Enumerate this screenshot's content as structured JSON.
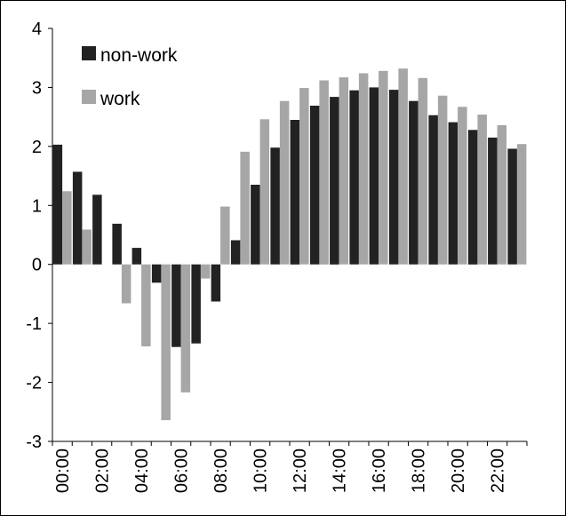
{
  "chart_data": {
    "type": "bar",
    "title": "",
    "xlabel": "",
    "ylabel": "",
    "ylim": [
      -3,
      4
    ],
    "yticks": [
      "-3",
      "-2",
      "-1",
      "0",
      "1",
      "2",
      "3",
      "4"
    ],
    "grid": false,
    "legend_position": "top-left",
    "categories": [
      "00:00",
      "01:00",
      "02:00",
      "03:00",
      "04:00",
      "05:00",
      "06:00",
      "07:00",
      "08:00",
      "09:00",
      "10:00",
      "11:00",
      "12:00",
      "13:00",
      "14:00",
      "15:00",
      "16:00",
      "17:00",
      "18:00",
      "19:00",
      "20:00",
      "21:00",
      "22:00",
      "23:00"
    ],
    "x_tick_labels": [
      "00:00",
      "",
      "02:00",
      "",
      "04:00",
      "",
      "06:00",
      "",
      "08:00",
      "",
      "10:00",
      "",
      "12:00",
      "",
      "14:00",
      "",
      "16:00",
      "",
      "18:00",
      "",
      "20:00",
      "",
      "22:00",
      ""
    ],
    "series": [
      {
        "name": "non-work",
        "color": "#222222",
        "values": [
          2.03,
          1.57,
          1.18,
          0.69,
          0.28,
          -0.31,
          -1.4,
          -1.34,
          -0.63,
          0.41,
          1.35,
          1.98,
          2.45,
          2.69,
          2.84,
          2.95,
          3.0,
          2.96,
          2.77,
          2.53,
          2.41,
          2.28,
          2.15,
          1.96
        ]
      },
      {
        "name": "work",
        "color": "#a6a6a6",
        "values": [
          1.24,
          0.59,
          null,
          -0.66,
          -1.39,
          -2.64,
          -2.17,
          -0.24,
          0.98,
          1.91,
          2.46,
          2.77,
          2.99,
          3.12,
          3.17,
          3.24,
          3.28,
          3.32,
          3.16,
          2.86,
          2.67,
          2.54,
          2.36,
          2.04
        ]
      }
    ]
  }
}
